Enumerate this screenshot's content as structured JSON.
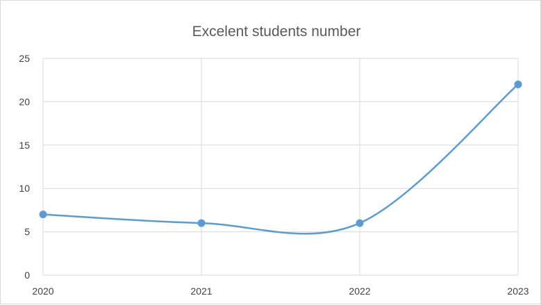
{
  "chart_data": {
    "type": "line",
    "title": "Excelent students number",
    "xlabel": "",
    "ylabel": "",
    "categories": [
      "2020",
      "2021",
      "2022",
      "2023"
    ],
    "series": [
      {
        "values": [
          7,
          6,
          6,
          22
        ],
        "color": "#5b9bd5"
      }
    ],
    "ylim": [
      0,
      25
    ],
    "yticks": [
      "0",
      "5",
      "10",
      "15",
      "20",
      "25"
    ],
    "smooth": true,
    "grid": true,
    "legend": "none"
  }
}
